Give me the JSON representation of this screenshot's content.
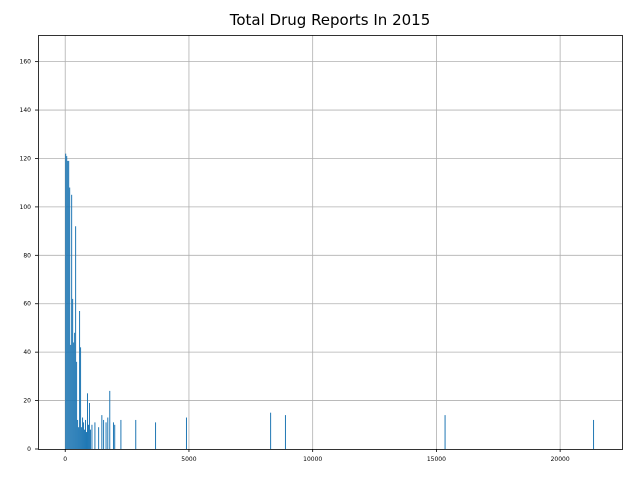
{
  "chart_data": {
    "type": "bar",
    "title": "Total Drug Reports In 2015",
    "xlabel": "",
    "ylabel": "",
    "xlim": [
      -1100,
      22500
    ],
    "ylim": [
      0,
      171
    ],
    "xticks": [
      0,
      5000,
      10000,
      15000,
      20000
    ],
    "yticks": [
      0,
      20,
      40,
      60,
      80,
      100,
      120,
      140,
      160
    ],
    "grid": true,
    "bar_color": "#1f77b4",
    "bar_width": 40,
    "series": [
      {
        "x": [
          20,
          60,
          100,
          140,
          180,
          220,
          260,
          300,
          340,
          380,
          420,
          460,
          500,
          540,
          580,
          620,
          660,
          700,
          740,
          780,
          820,
          860,
          900,
          940,
          980,
          1020,
          1080,
          1200,
          1350,
          1480,
          1550,
          1650,
          1720,
          1800,
          1950,
          2000,
          2250,
          2850,
          3650,
          4900,
          8300,
          8900,
          15350,
          21350
        ],
        "values": [
          122,
          121,
          119,
          119,
          108,
          43,
          105,
          62,
          44,
          48,
          92,
          36,
          12,
          9,
          57,
          42,
          9,
          13,
          11,
          8,
          12,
          7,
          23,
          10,
          19,
          8,
          10,
          11,
          9,
          14,
          12,
          11,
          13,
          24,
          11,
          10,
          12,
          12,
          11,
          13,
          15,
          14,
          14,
          12
        ]
      }
    ]
  }
}
